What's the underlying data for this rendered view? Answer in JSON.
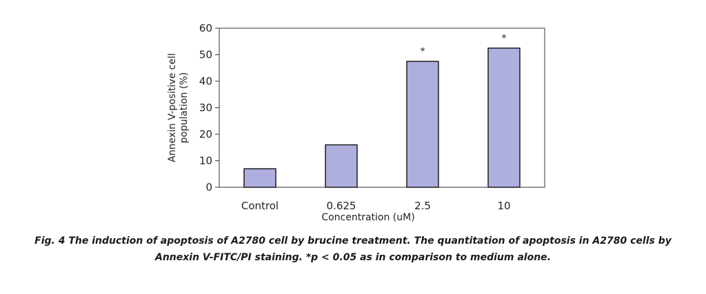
{
  "chart_data": {
    "type": "bar",
    "categories": [
      "Control",
      "0.625",
      "2.5",
      "10"
    ],
    "values": [
      7,
      16,
      47.5,
      52.5
    ],
    "annotations": [
      "",
      "",
      "*",
      "*"
    ],
    "xlabel": "Concentration (uM)",
    "ylabel_lines": [
      "Annexin V-positive cell",
      "population (%)"
    ],
    "ylim": [
      0,
      60
    ],
    "yticks": [
      0,
      10,
      20,
      30,
      40,
      50,
      60
    ],
    "bar_color": "#aeaedf",
    "bar_edge_color": "#000000",
    "grid": false
  },
  "caption": {
    "line1": "Fig. 4 The induction of apoptosis of A2780 cell by brucine treatment. The quantitation of apoptosis in A2780 cells by",
    "line2": "Annexin V-FITC/PI staining. *p < 0.05 as in comparison to medium alone."
  }
}
